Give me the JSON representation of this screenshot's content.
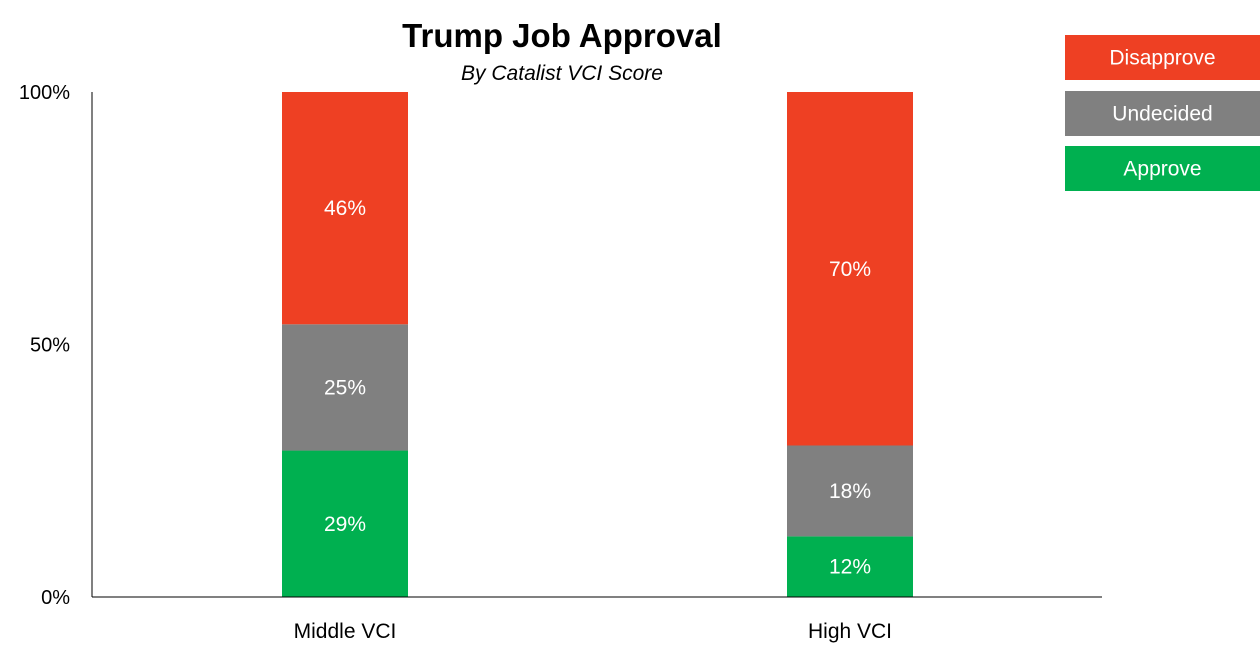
{
  "chart_data": {
    "type": "bar",
    "stacked": true,
    "title": "Trump Job Approval",
    "subtitle": "By Catalist VCI Score",
    "categories": [
      "Middle VCI",
      "High VCI"
    ],
    "series": [
      {
        "name": "Approve",
        "values": [
          29,
          12
        ],
        "labels": [
          "29%",
          "12%"
        ],
        "color": "#00B050"
      },
      {
        "name": "Undecided",
        "values": [
          25,
          18
        ],
        "labels": [
          "25%",
          "18%"
        ],
        "color": "#808080"
      },
      {
        "name": "Disapprove",
        "values": [
          46,
          70
        ],
        "labels": [
          "46%",
          "70%"
        ],
        "color": "#EE4023"
      }
    ],
    "legend_order": [
      "Disapprove",
      "Undecided",
      "Approve"
    ],
    "ylim": [
      0,
      100
    ],
    "yticks": [
      {
        "value": 0,
        "label": "0%"
      },
      {
        "value": 50,
        "label": "50%"
      },
      {
        "value": 100,
        "label": "100%"
      }
    ],
    "legend_position": "top-right",
    "grid": false
  }
}
